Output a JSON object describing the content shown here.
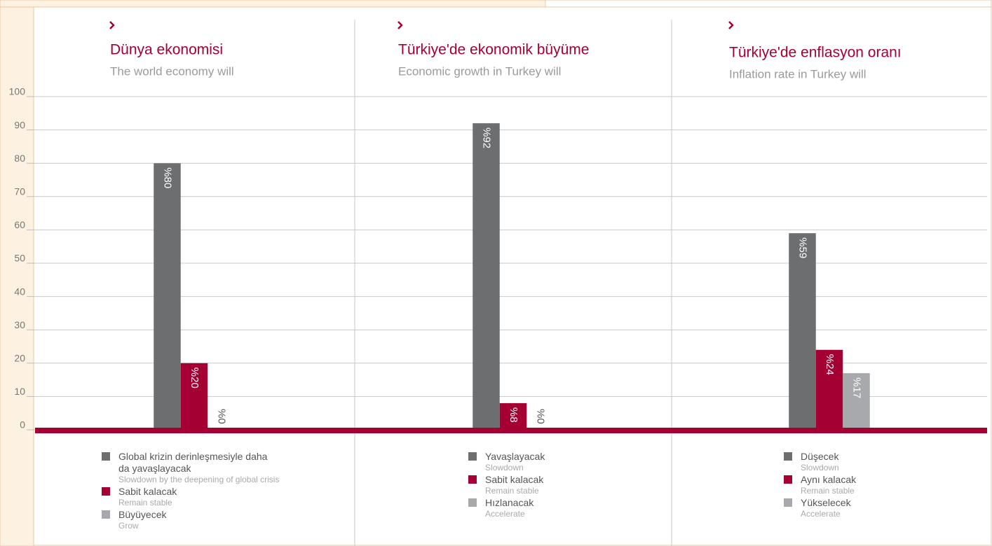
{
  "chart_data": {
    "type": "bar",
    "ylim": [
      0,
      100
    ],
    "yticks": [
      0,
      10,
      20,
      30,
      40,
      50,
      60,
      70,
      80,
      90,
      100
    ],
    "grid": true,
    "panels": [
      {
        "title": "Dünya ekonomisi",
        "subtitle": "The world economy will",
        "categories": [
          "Global krizin derinleşmesiyle daha da yavaşlayacak",
          "Sabit kalacak",
          "Büyüyecek"
        ],
        "category_notes": [
          "Slowdown by the deepening of global crisis",
          "Remain stable",
          "Grow"
        ],
        "values": [
          80,
          20,
          0
        ],
        "value_labels": [
          "%80",
          "%20",
          "%0"
        ],
        "colors": [
          "#6d6e70",
          "#a50034",
          "#a7a9ac"
        ]
      },
      {
        "title": "Türkiye'de ekonomik büyüme",
        "subtitle": "Economic growth in Turkey will",
        "categories": [
          "Yavaşlayacak",
          "Sabit kalacak",
          "Hızlanacak"
        ],
        "category_notes": [
          "Slowdown",
          "Remain stable",
          "Accelerate"
        ],
        "values": [
          92,
          8,
          0
        ],
        "value_labels": [
          "%92",
          "%8",
          "%0"
        ],
        "colors": [
          "#6d6e70",
          "#a50034",
          "#a7a9ac"
        ]
      },
      {
        "title": "Türkiye'de enflasyon oranı",
        "subtitle": "Inflation rate in Turkey will",
        "categories": [
          "Düşecek",
          "Aynı kalacak",
          "Yükselecek"
        ],
        "category_notes": [
          "Slowdown",
          "Remain stable",
          "Accelerate"
        ],
        "values": [
          59,
          24,
          17
        ],
        "value_labels": [
          "%59",
          "%24",
          "%17"
        ],
        "colors": [
          "#6d6e70",
          "#a50034",
          "#a7a9ac"
        ]
      }
    ]
  }
}
